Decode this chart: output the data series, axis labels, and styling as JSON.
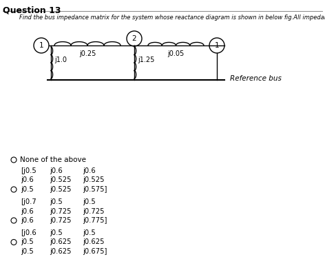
{
  "title": "Question 13",
  "subtitle": "Find the bus impedance matrix for the system whose reactance diagram is shown in below fig.All impedances are in p.u",
  "background_color": "#ffffff",
  "text_color": "#000000",
  "circuit": {
    "bus1_label": "1",
    "bus2_label": "2",
    "bus3_label": "1",
    "z12": "j0.25",
    "z23": "j0.05",
    "z1g": "j1.0",
    "z2g": "j1.25",
    "ref_label": "Reference bus"
  },
  "options": [
    {
      "label": "None of the above",
      "matrix": null,
      "radio_on_row": 0
    },
    {
      "matrix": [
        [
          "[j0.5",
          "j0.6",
          "j0.6"
        ],
        [
          "j0.6",
          "j0.525",
          "j0.525"
        ],
        [
          "j0.5",
          "j0.525",
          "j0.575]"
        ]
      ],
      "radio_on_row": 2
    },
    {
      "matrix": [
        [
          "[j0.7",
          "j0.5",
          "j0.5"
        ],
        [
          "j0.6",
          "j0.725",
          "j0.725"
        ],
        [
          "j0.6",
          "j0.725",
          "j0.775]"
        ]
      ],
      "radio_on_row": 2
    },
    {
      "matrix": [
        [
          "[j0.6",
          "j0.5",
          "j0.5"
        ],
        [
          "j0.5",
          "j0.625",
          "j0.625"
        ],
        [
          "j0.5",
          "j0.625",
          "j0.675]"
        ]
      ],
      "radio_on_row": 1
    }
  ]
}
